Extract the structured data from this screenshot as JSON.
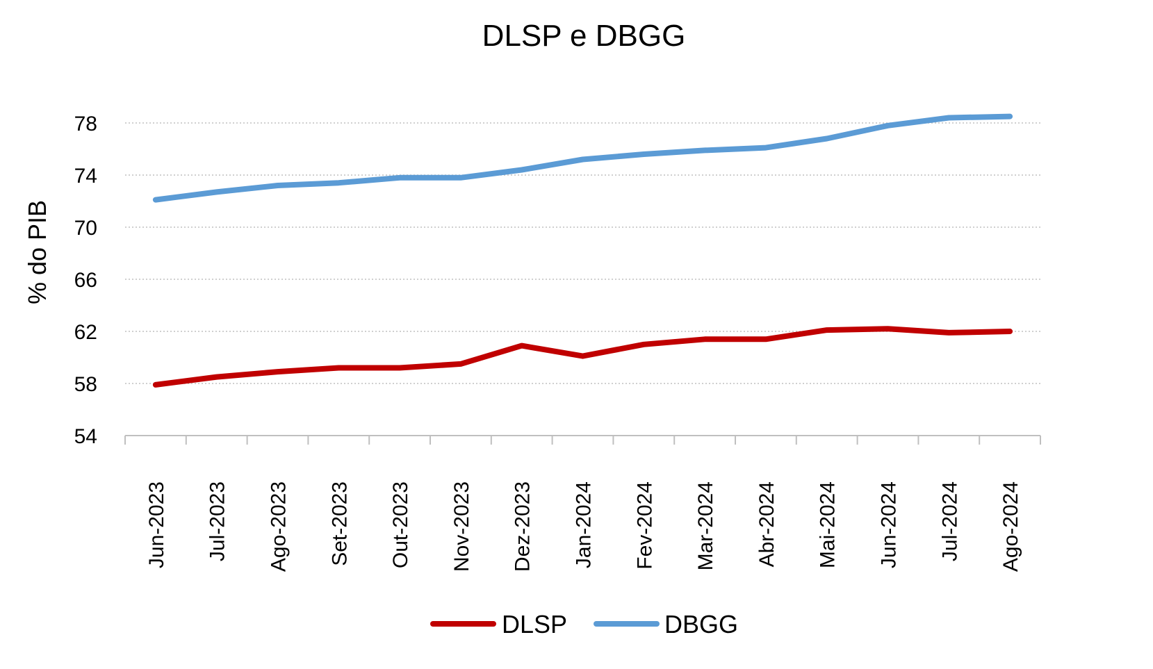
{
  "chart_data": {
    "type": "line",
    "title": "DLSP e DBGG",
    "xlabel": "",
    "ylabel": "% do PIB",
    "ylim": [
      54,
      78
    ],
    "yticks": [
      54,
      58,
      62,
      66,
      70,
      74,
      78
    ],
    "grid": true,
    "legend": "bottom",
    "categories": [
      "Jun-2023",
      "Jul-2023",
      "Ago-2023",
      "Set-2023",
      "Out-2023",
      "Nov-2023",
      "Dez-2023",
      "Jan-2024",
      "Fev-2024",
      "Mar-2024",
      "Abr-2024",
      "Mai-2024",
      "Jun-2024",
      "Jul-2024",
      "Ago-2024"
    ],
    "series": [
      {
        "name": "DLSP",
        "color": "#c00000",
        "values": [
          57.9,
          58.5,
          58.9,
          59.2,
          59.2,
          59.5,
          60.9,
          60.1,
          61.0,
          61.4,
          61.4,
          62.1,
          62.2,
          61.9,
          62.0
        ]
      },
      {
        "name": "DBGG",
        "color": "#5b9bd5",
        "values": [
          72.1,
          72.7,
          73.2,
          73.4,
          73.8,
          73.8,
          74.4,
          75.2,
          75.6,
          75.9,
          76.1,
          76.8,
          77.8,
          78.4,
          78.5
        ]
      }
    ]
  }
}
